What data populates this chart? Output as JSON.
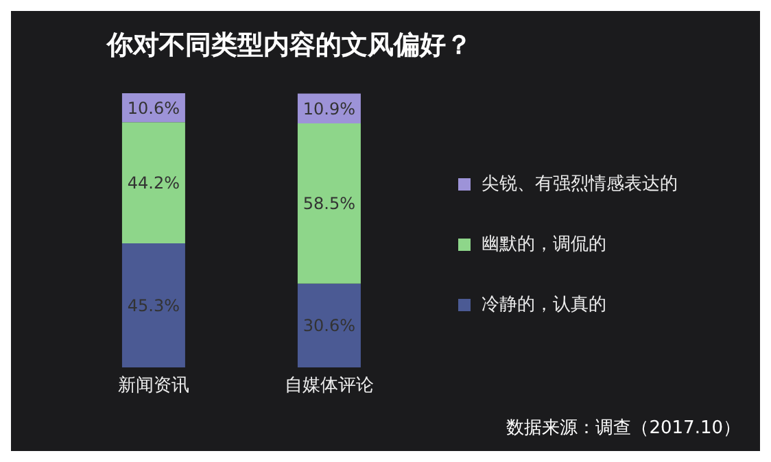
{
  "chart_data": {
    "type": "bar",
    "title": "你对不同类型内容的文风偏好？",
    "categories": [
      "新闻资讯",
      "自媒体评论"
    ],
    "stacked": true,
    "legend": "right",
    "series": [
      {
        "name": "冷静的，认真的",
        "color": "#4b5a94",
        "values": [
          45.3,
          30.6
        ],
        "value_labels": [
          "45.3%",
          "30.6%"
        ]
      },
      {
        "name": "幽默的，调侃的",
        "color": "#8ed68a",
        "values": [
          44.2,
          58.5
        ],
        "value_labels": [
          "44.2%",
          "58.5%"
        ]
      },
      {
        "name": "尖锐、有强烈情感表达的",
        "color": "#9d93d8",
        "values": [
          10.6,
          10.9
        ],
        "value_labels": [
          "10.6%",
          "10.9%"
        ]
      }
    ],
    "annotations": [
      "数据来源：调查（2017.10）"
    ]
  }
}
